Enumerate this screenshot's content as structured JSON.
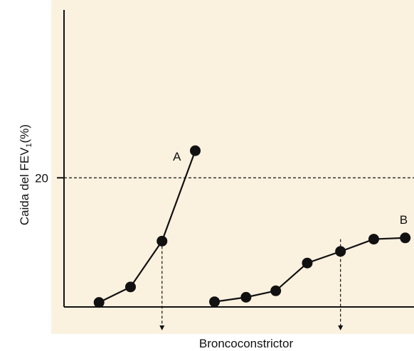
{
  "chart_data": {
    "type": "line",
    "xlabel": "Broncoconstrictor",
    "ylabel": {
      "text": "Caida del FEV",
      "subscript": "1",
      "suffix": "(%)"
    },
    "y_ticks": [
      {
        "value": 20,
        "label": "20"
      }
    ],
    "ylim": [
      0,
      46
    ],
    "xlim": [
      0,
      10
    ],
    "grid": false,
    "series": [
      {
        "name": "A",
        "x": [
          1.0,
          1.9,
          2.8,
          3.75
        ],
        "y": [
          0.7,
          3.1,
          10.2,
          24.2
        ]
      },
      {
        "name": "B",
        "x": [
          4.3,
          5.2,
          6.05,
          6.95,
          7.9,
          8.85,
          9.75
        ],
        "y": [
          0.8,
          1.5,
          2.5,
          6.8,
          8.6,
          10.5,
          10.7
        ]
      }
    ],
    "reference_lines": [
      {
        "type": "horizontal",
        "y": 20,
        "style": "dashed"
      },
      {
        "type": "vertical",
        "x": 2.8,
        "from_y": 10.2,
        "style": "dashed-arrow"
      },
      {
        "type": "vertical",
        "x": 7.9,
        "from_y": 10.5,
        "style": "dashed-arrow"
      }
    ]
  }
}
